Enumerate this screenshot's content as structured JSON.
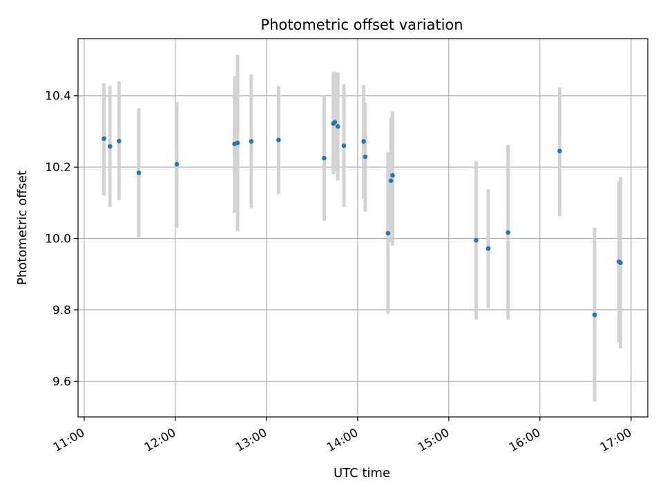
{
  "chart_data": {
    "type": "scatter",
    "title": "Photometric offset variation",
    "xlabel": "UTC time",
    "ylabel": "Photometric offset",
    "grid": true,
    "x_tick_labels": [
      "11:00",
      "12:00",
      "13:00",
      "14:00",
      "15:00",
      "16:00",
      "17:00"
    ],
    "y_ticks": [
      9.6,
      9.8,
      10.0,
      10.2,
      10.4
    ],
    "y_tick_labels": [
      "9.6",
      "9.8",
      "10.0",
      "10.2",
      "10.4"
    ],
    "xlim": [
      "10:56",
      "17:11"
    ],
    "ylim": [
      9.5,
      10.56
    ],
    "colors": {
      "point": "#1f77b4",
      "errorbar": "#d3d3d3",
      "grid": "#b0b0b0"
    },
    "points": [
      {
        "time": "11:13",
        "y": 10.28,
        "ylow": 10.12,
        "yhigh": 10.435
      },
      {
        "time": "11:17",
        "y": 10.258,
        "ylow": 10.088,
        "yhigh": 10.428
      },
      {
        "time": "11:23",
        "y": 10.273,
        "ylow": 10.108,
        "yhigh": 10.44
      },
      {
        "time": "11:36",
        "y": 10.184,
        "ylow": 10.003,
        "yhigh": 10.365
      },
      {
        "time": "12:01",
        "y": 10.208,
        "ylow": 10.03,
        "yhigh": 10.383
      },
      {
        "time": "12:39",
        "y": 10.265,
        "ylow": 10.072,
        "yhigh": 10.455
      },
      {
        "time": "12:41",
        "y": 10.268,
        "ylow": 10.02,
        "yhigh": 10.515
      },
      {
        "time": "12:50",
        "y": 10.272,
        "ylow": 10.085,
        "yhigh": 10.46
      },
      {
        "time": "13:08",
        "y": 10.276,
        "ylow": 10.125,
        "yhigh": 10.427
      },
      {
        "time": "13:38",
        "y": 10.225,
        "ylow": 10.05,
        "yhigh": 10.4
      },
      {
        "time": "13:44",
        "y": 10.322,
        "ylow": 10.18,
        "yhigh": 10.466
      },
      {
        "time": "13:45",
        "y": 10.326,
        "ylow": 10.19,
        "yhigh": 10.468
      },
      {
        "time": "13:47",
        "y": 10.314,
        "ylow": 10.163,
        "yhigh": 10.465
      },
      {
        "time": "13:51",
        "y": 10.26,
        "ylow": 10.088,
        "yhigh": 10.432
      },
      {
        "time": "14:04",
        "y": 10.272,
        "ylow": 10.11,
        "yhigh": 10.43
      },
      {
        "time": "14:05",
        "y": 10.229,
        "ylow": 10.075,
        "yhigh": 10.38
      },
      {
        "time": "14:20",
        "y": 10.015,
        "ylow": 9.788,
        "yhigh": 10.242
      },
      {
        "time": "14:22",
        "y": 10.162,
        "ylow": 9.99,
        "yhigh": 10.34
      },
      {
        "time": "14:23",
        "y": 10.177,
        "ylow": 9.98,
        "yhigh": 10.356
      },
      {
        "time": "15:18",
        "y": 9.995,
        "ylow": 9.772,
        "yhigh": 10.217
      },
      {
        "time": "15:26",
        "y": 9.972,
        "ylow": 9.805,
        "yhigh": 10.138
      },
      {
        "time": "15:39",
        "y": 10.017,
        "ylow": 9.772,
        "yhigh": 10.262
      },
      {
        "time": "16:13",
        "y": 10.245,
        "ylow": 10.063,
        "yhigh": 10.423
      },
      {
        "time": "16:36",
        "y": 9.786,
        "ylow": 9.543,
        "yhigh": 10.03
      },
      {
        "time": "16:52",
        "y": 9.935,
        "ylow": 9.708,
        "yhigh": 10.16
      },
      {
        "time": "16:53",
        "y": 9.932,
        "ylow": 9.692,
        "yhigh": 10.172
      }
    ]
  }
}
